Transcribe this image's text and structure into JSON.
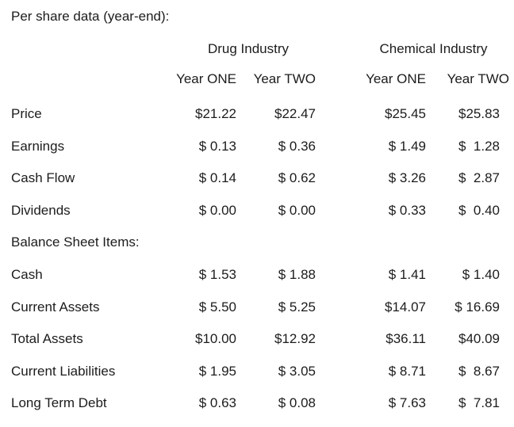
{
  "title": "Per share data (year-end):",
  "colors": {
    "text": "#1c1c1c",
    "background": "#ffffff"
  },
  "table": {
    "group_headers": [
      {
        "label": "Drug Industry"
      },
      {
        "label": "Chemical Industry"
      }
    ],
    "year_headers": [
      "Year ONE",
      "Year TWO",
      "Year ONE",
      "Year TWO"
    ],
    "rows": [
      {
        "label": "Price",
        "values": [
          "$21.22",
          "$22.47",
          "$25.45",
          "$25.83"
        ]
      },
      {
        "label": "Earnings",
        "values": [
          "$ 0.13",
          "$ 0.36",
          "$ 1.49",
          "$  1.28"
        ]
      },
      {
        "label": "Cash Flow",
        "values": [
          "$ 0.14",
          "$ 0.62",
          "$ 3.26",
          "$  2.87"
        ]
      },
      {
        "label": "Dividends",
        "values": [
          "$ 0.00",
          "$ 0.00",
          "$ 0.33",
          "$  0.40"
        ]
      },
      {
        "label": "Balance Sheet Items:",
        "values": [
          "",
          "",
          "",
          ""
        ]
      },
      {
        "label": "Cash",
        "values": [
          "$ 1.53",
          "$ 1.88",
          "$ 1.41",
          "$ 1.40"
        ]
      },
      {
        "label": "Current Assets",
        "values": [
          "$ 5.50",
          "$ 5.25",
          "$14.07",
          "$ 16.69"
        ]
      },
      {
        "label": "Total Assets",
        "values": [
          "$10.00",
          "$12.92",
          "$36.11",
          "$40.09"
        ]
      },
      {
        "label": "Current Liabilities",
        "values": [
          "$ 1.95",
          "$ 3.05",
          "$ 8.71",
          "$  8.67"
        ]
      },
      {
        "label": "Long Term Debt",
        "values": [
          "$ 0.63",
          "$ 0.08",
          "$ 7.63",
          "$  7.81"
        ]
      }
    ]
  }
}
